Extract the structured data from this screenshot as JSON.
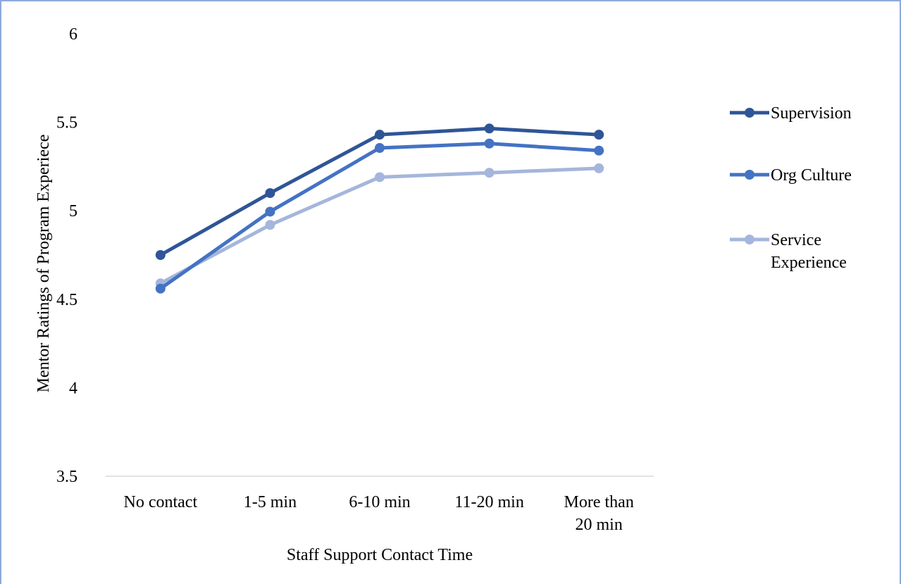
{
  "chart_data": {
    "type": "line",
    "title": "",
    "xlabel": "Staff Support Contact Time",
    "ylabel": "Mentor Ratings of Program Experiece",
    "categories": [
      "No contact",
      "1-5 min",
      "6-10 min",
      "11-20 min",
      "More than 20 min"
    ],
    "category_lines": [
      [
        "No contact"
      ],
      [
        "1-5 min"
      ],
      [
        "6-10 min"
      ],
      [
        "11-20 min"
      ],
      [
        "More than",
        "20 min"
      ]
    ],
    "ylim": [
      3.5,
      6
    ],
    "yticks": [
      "3.5",
      "4",
      "4.5",
      "5",
      "5.5",
      "6"
    ],
    "grid": false,
    "legend_position": "right",
    "series": [
      {
        "name": "Supervision",
        "label_lines": [
          "Supervision"
        ],
        "color": "#2f5597",
        "values": [
          4.75,
          5.1,
          5.43,
          5.465,
          5.43
        ]
      },
      {
        "name": "Org Culture",
        "label_lines": [
          "Org Culture"
        ],
        "color": "#4472c4",
        "values": [
          4.56,
          4.995,
          5.355,
          5.38,
          5.34
        ]
      },
      {
        "name": "Service Experience",
        "label_lines": [
          "Service",
          "Experience"
        ],
        "color": "#a5b6dc",
        "values": [
          4.59,
          4.92,
          5.19,
          5.215,
          5.24
        ]
      }
    ]
  }
}
